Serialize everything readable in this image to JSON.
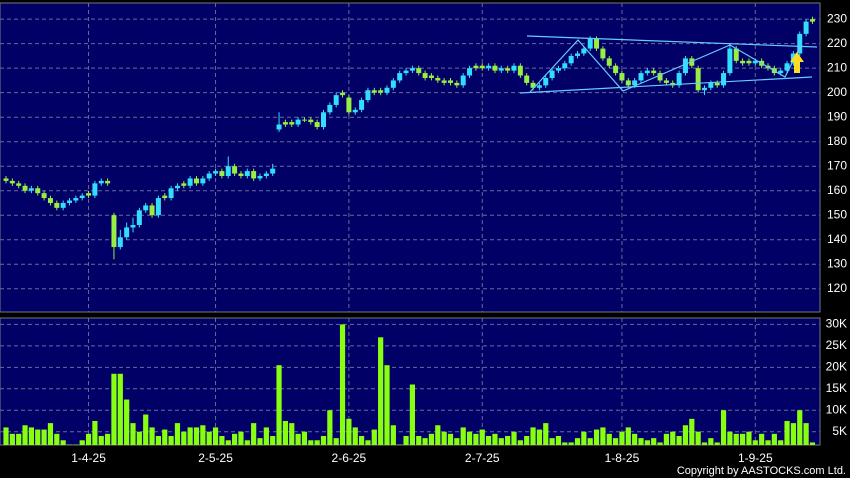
{
  "chart_data": [
    {
      "type": "candlestick",
      "categories": [
        null,
        null,
        null,
        null,
        null,
        null,
        null,
        null,
        null,
        null,
        null,
        null,
        null,
        "1-4-25",
        null,
        null,
        null,
        null,
        null,
        null,
        null,
        null,
        null,
        null,
        null,
        null,
        null,
        null,
        null,
        null,
        null,
        null,
        null,
        "2-5-25",
        null,
        null,
        null,
        null,
        null,
        null,
        null,
        null,
        null,
        null,
        null,
        null,
        null,
        null,
        null,
        null,
        null,
        null,
        null,
        null,
        "2-6-25",
        null,
        null,
        null,
        null,
        null,
        null,
        null,
        null,
        null,
        null,
        null,
        null,
        null,
        null,
        null,
        null,
        null,
        null,
        null,
        null,
        "2-7-25",
        null,
        null,
        null,
        null,
        null,
        null,
        null,
        null,
        null,
        null,
        null,
        null,
        null,
        null,
        null,
        null,
        null,
        null,
        null,
        null,
        null,
        "1-8-25",
        null,
        null,
        null,
        null,
        null,
        null,
        null,
        null,
        null,
        null,
        null,
        null,
        null,
        null,
        null,
        null,
        null,
        null,
        null,
        null,
        "1-9-25",
        null,
        null,
        null,
        null,
        null,
        null,
        null,
        null,
        null
      ],
      "open": [
        165,
        164,
        163,
        162,
        160,
        161,
        159,
        157,
        155,
        153,
        155,
        156,
        157,
        159,
        158,
        163,
        164,
        150,
        137,
        141,
        145,
        146,
        152,
        154,
        150,
        158,
        157,
        161,
        163,
        162,
        165,
        163,
        165,
        167,
        168,
        166,
        170,
        167,
        166,
        168,
        165,
        166,
        167,
        185,
        188,
        188,
        187,
        189,
        189,
        188,
        186,
        192,
        195,
        200,
        198,
        192,
        193,
        197,
        201,
        201,
        200,
        202,
        205,
        208,
        209,
        210,
        208,
        207,
        206,
        205,
        205,
        204,
        203,
        207,
        211,
        211,
        210,
        211,
        209,
        210,
        209,
        211,
        207,
        204,
        202,
        203,
        206,
        209,
        210,
        212,
        215,
        216,
        218,
        222,
        218,
        214,
        211,
        208,
        205,
        203,
        205,
        208,
        209,
        208,
        205,
        204,
        203,
        208,
        214,
        210,
        201,
        202,
        204,
        203,
        208,
        218,
        213,
        213,
        212,
        213,
        211,
        210,
        208,
        209,
        212,
        216,
        224,
        230
      ],
      "high": [
        166,
        165,
        164,
        163,
        162,
        162,
        160,
        158,
        156,
        156,
        157,
        158,
        159,
        160,
        164,
        165,
        165,
        151,
        144,
        147,
        149,
        153,
        155,
        155,
        158,
        159,
        162,
        163,
        164,
        166,
        166,
        166,
        168,
        169,
        169,
        174,
        171,
        168,
        169,
        169,
        167,
        168,
        171,
        192,
        189,
        189,
        190,
        190,
        190,
        189,
        193,
        196,
        200,
        201,
        199,
        194,
        198,
        202,
        202,
        202,
        203,
        206,
        209,
        210,
        211,
        211,
        209,
        208,
        207,
        206,
        206,
        205,
        208,
        211,
        212,
        212,
        212,
        212,
        211,
        211,
        212,
        212,
        208,
        205,
        204,
        207,
        210,
        211,
        213,
        216,
        217,
        219,
        223,
        223,
        219,
        215,
        212,
        209,
        206,
        206,
        209,
        210,
        210,
        209,
        206,
        205,
        209,
        215,
        215,
        211,
        203,
        205,
        205,
        209,
        220,
        219,
        214,
        214,
        214,
        214,
        212,
        211,
        210,
        213,
        217,
        225,
        230,
        231
      ],
      "low": [
        163,
        162,
        161,
        159,
        159,
        158,
        156,
        154,
        152,
        152,
        154,
        155,
        156,
        157,
        157,
        162,
        162,
        132,
        136,
        140,
        143,
        145,
        151,
        149,
        149,
        156,
        156,
        160,
        161,
        161,
        162,
        162,
        164,
        166,
        165,
        165,
        166,
        165,
        165,
        164,
        164,
        165,
        166,
        184,
        186,
        186,
        186,
        188,
        187,
        185,
        185,
        191,
        194,
        198,
        191,
        191,
        192,
        196,
        199,
        199,
        199,
        201,
        204,
        207,
        208,
        207,
        205,
        205,
        204,
        203,
        203,
        202,
        202,
        206,
        209,
        209,
        209,
        208,
        208,
        208,
        208,
        206,
        203,
        201,
        201,
        202,
        205,
        208,
        209,
        211,
        214,
        215,
        217,
        217,
        213,
        210,
        207,
        204,
        202,
        202,
        204,
        207,
        207,
        204,
        203,
        202,
        202,
        207,
        210,
        200,
        199,
        201,
        202,
        202,
        207,
        212,
        211,
        211,
        211,
        210,
        209,
        207,
        207,
        208,
        211,
        215,
        223,
        228
      ],
      "close": [
        164,
        163,
        162,
        160,
        161,
        159,
        157,
        155,
        153,
        155,
        156,
        157,
        158,
        158,
        163,
        164,
        163,
        137,
        141,
        145,
        146,
        152,
        154,
        150,
        157,
        157,
        161,
        162,
        162,
        165,
        163,
        165,
        167,
        168,
        166,
        170,
        167,
        166,
        168,
        165,
        166,
        167,
        169,
        187,
        187,
        187,
        189,
        189,
        188,
        186,
        192,
        195,
        199,
        199,
        192,
        193,
        197,
        201,
        200,
        200,
        202,
        205,
        208,
        209,
        210,
        208,
        206,
        206,
        205,
        204,
        204,
        203,
        207,
        210,
        210,
        210,
        211,
        209,
        210,
        209,
        211,
        207,
        204,
        202,
        203,
        206,
        209,
        210,
        212,
        215,
        216,
        218,
        222,
        218,
        214,
        211,
        208,
        205,
        203,
        205,
        208,
        209,
        208,
        205,
        204,
        203,
        208,
        214,
        211,
        201,
        202,
        204,
        203,
        208,
        218,
        213,
        212,
        212,
        213,
        211,
        210,
        208,
        209,
        212,
        216,
        224,
        229,
        229
      ],
      "up_color": "#33ddff",
      "down_color": "#99ee44",
      "ylim": [
        110.5,
        236.6
      ],
      "yticks": [
        120,
        130,
        140,
        150,
        160,
        170,
        180,
        190,
        200,
        210,
        220,
        230
      ],
      "grid": true
    },
    {
      "type": "bar",
      "values": [
        6000,
        4500,
        4500,
        6500,
        6000,
        5500,
        5500,
        7000,
        4500,
        3000,
        2000,
        2000,
        3000,
        4500,
        7500,
        4000,
        4500,
        18500,
        18500,
        12500,
        7000,
        5000,
        9000,
        6000,
        4000,
        5500,
        4000,
        7000,
        5000,
        6000,
        6000,
        6500,
        5000,
        6000,
        4000,
        3000,
        4500,
        5000,
        3000,
        7000,
        3500,
        6000,
        4000,
        20500,
        7500,
        7000,
        4500,
        5000,
        3000,
        3000,
        4000,
        10000,
        3500,
        30000,
        8000,
        6000,
        4000,
        3000,
        5500,
        27000,
        20500,
        6500,
        2000,
        4000,
        16000,
        4000,
        3500,
        4500,
        6500,
        5000,
        4500,
        3500,
        6000,
        5000,
        4500,
        5500,
        4000,
        4500,
        3500,
        4000,
        5000,
        3000,
        4000,
        6000,
        5500,
        7000,
        3500,
        4000,
        2500,
        2500,
        3500,
        5000,
        3500,
        5500,
        6000,
        4500,
        3500,
        5000,
        6000,
        4500,
        3500,
        3000,
        3500,
        2500,
        4500,
        5000,
        4000,
        6500,
        8000,
        5000,
        2500,
        3500,
        2500,
        10000,
        5000,
        4500,
        4500,
        5000,
        3000,
        4500,
        3000,
        4500,
        3000,
        7500,
        7000,
        10000,
        7000,
        2500
      ],
      "color": "#88ff11",
      "ylim": [
        1900,
        31500
      ],
      "yticks": [
        {
          "value": 5000,
          "label": "5K"
        },
        {
          "value": 10000,
          "label": "10K"
        },
        {
          "value": 15000,
          "label": "15K"
        },
        {
          "value": 20000,
          "label": "20K"
        },
        {
          "value": 25000,
          "label": "25K"
        },
        {
          "value": 30000,
          "label": "30K"
        }
      ],
      "grid": true
    }
  ],
  "footer": "Copyright by AASTOCKS.com Ltd."
}
